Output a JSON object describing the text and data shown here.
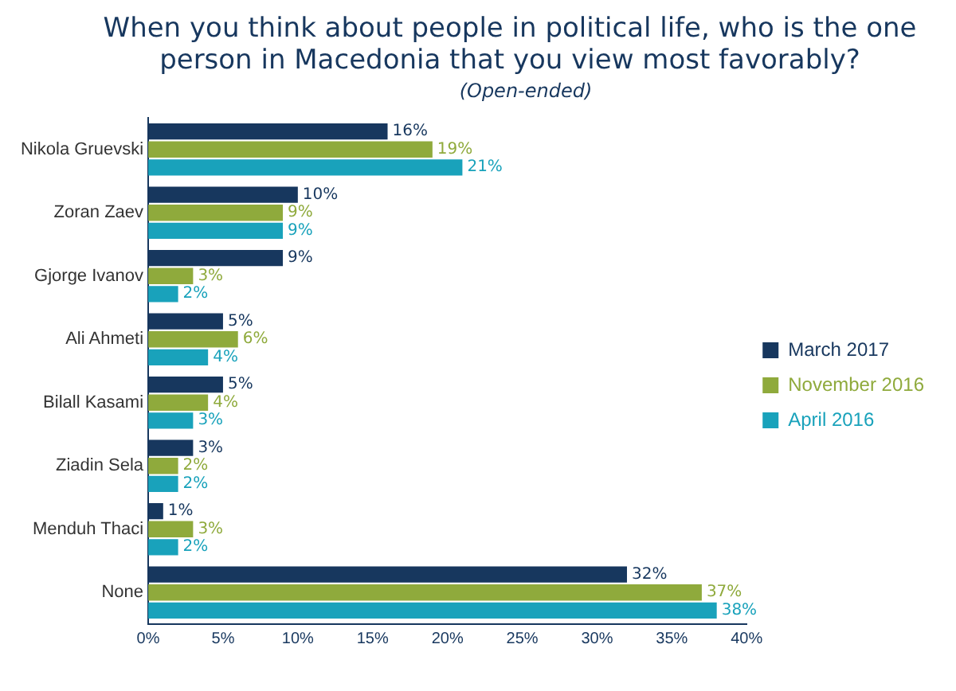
{
  "chart_data": {
    "type": "bar",
    "orientation": "horizontal",
    "title": "When you think about people in political life, who is the one person in Macedonia that you view most favorably?",
    "subtitle": "(Open-ended)",
    "categories": [
      "Nikola Gruevski",
      "Zoran Zaev",
      "Gjorge Ivanov",
      "Ali Ahmeti",
      "Bilall Kasami",
      "Ziadin Sela",
      "Menduh Thaci",
      "None"
    ],
    "series": [
      {
        "name": "March 2017",
        "color": "#17375e",
        "values": [
          16,
          10,
          9,
          5,
          5,
          3,
          1,
          32
        ],
        "value_labels": [
          "16%",
          "10%",
          "9%",
          "5%",
          "5%",
          "3%",
          "1%",
          "32%"
        ]
      },
      {
        "name": "November 2016",
        "color": "#8faa3c",
        "values": [
          19,
          9,
          3,
          6,
          4,
          2,
          3,
          37
        ],
        "value_labels": [
          "19%",
          "9%",
          "3%",
          "6%",
          "4%",
          "2%",
          "3%",
          "37%"
        ]
      },
      {
        "name": "April 2016",
        "color": "#19a2bb",
        "values": [
          21,
          9,
          2,
          4,
          3,
          2,
          2,
          38
        ],
        "value_labels": [
          "21%",
          "9%",
          "2%",
          "4%",
          "3%",
          "2%",
          "2%",
          "38%"
        ]
      }
    ],
    "xlim": [
      0,
      40
    ],
    "xticks": [
      {
        "value": 0,
        "label": "0%"
      },
      {
        "value": 5,
        "label": "5%"
      },
      {
        "value": 10,
        "label": "10%"
      },
      {
        "value": 15,
        "label": "15%"
      },
      {
        "value": 20,
        "label": "20%"
      },
      {
        "value": 25,
        "label": "25%"
      },
      {
        "value": 30,
        "label": "30%"
      },
      {
        "value": 35,
        "label": "35%"
      },
      {
        "value": 40,
        "label": "40%"
      }
    ],
    "grid": false,
    "legend": "right"
  }
}
